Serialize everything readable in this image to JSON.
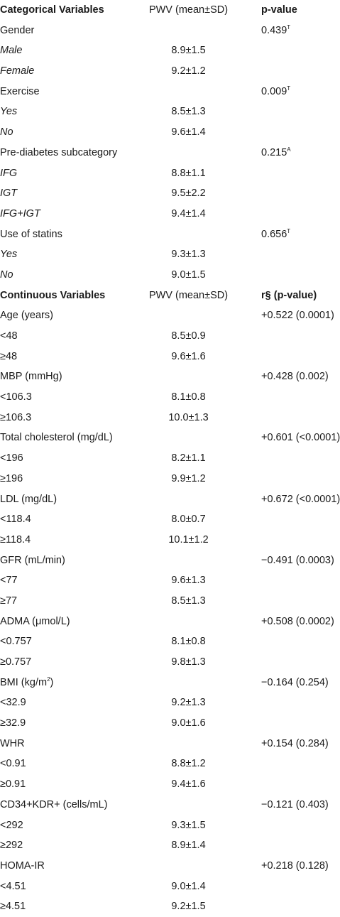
{
  "rows": [
    {
      "kind": "header",
      "c0": "Categorical Variables",
      "c1": "PWV (mean±SD)",
      "c2": "p-value"
    },
    {
      "kind": "group",
      "c0": "Gender",
      "c1": "",
      "c2": "0.439",
      "sup": "T"
    },
    {
      "kind": "sub",
      "c0": "Male",
      "c1": "8.9±1.5",
      "c2": ""
    },
    {
      "kind": "sub",
      "c0": "Female",
      "c1": "9.2±1.2",
      "c2": ""
    },
    {
      "kind": "group",
      "c0": "Exercise",
      "c1": "",
      "c2": "0.009",
      "sup": "T"
    },
    {
      "kind": "sub",
      "c0": "Yes",
      "c1": "8.5±1.3",
      "c2": ""
    },
    {
      "kind": "sub",
      "c0": "No",
      "c1": "9.6±1.4",
      "c2": ""
    },
    {
      "kind": "group",
      "c0": "Pre-diabetes subcategory",
      "c1": "",
      "c2": "0.215",
      "sup": "A"
    },
    {
      "kind": "sub",
      "c0": "IFG",
      "c1": "8.8±1.1",
      "c2": ""
    },
    {
      "kind": "sub",
      "c0": "IGT",
      "c1": "9.5±2.2",
      "c2": ""
    },
    {
      "kind": "sub",
      "c0": "IFG+IGT",
      "c1": "9.4±1.4",
      "c2": ""
    },
    {
      "kind": "group",
      "c0": "Use of statins",
      "c1": "",
      "c2": "0.656",
      "sup": "T"
    },
    {
      "kind": "sub",
      "c0": "Yes",
      "c1": "9.3±1.3",
      "c2": ""
    },
    {
      "kind": "sub",
      "c0": "No",
      "c1": "9.0±1.5",
      "c2": ""
    },
    {
      "kind": "header",
      "c0": "Continuous Variables",
      "c1": "PWV (mean±SD)",
      "c2": "r§ (p-value)"
    },
    {
      "kind": "group",
      "c0": "Age (years)",
      "c1": "",
      "c2": "+0.522 (0.0001)"
    },
    {
      "kind": "plain",
      "c0": "<48",
      "c1": "8.5±0.9",
      "c2": ""
    },
    {
      "kind": "plain",
      "c0": "≥48",
      "c1": "9.6±1.6",
      "c2": ""
    },
    {
      "kind": "group",
      "c0": "MBP (mmHg)",
      "c1": "",
      "c2": "+0.428 (0.002)"
    },
    {
      "kind": "plain",
      "c0": "<106.3",
      "c1": "8.1±0.8",
      "c2": ""
    },
    {
      "kind": "plain",
      "c0": "≥106.3",
      "c1": "10.0±1.3",
      "c2": ""
    },
    {
      "kind": "group",
      "c0": "Total cholesterol (mg/dL)",
      "c1": "",
      "c2": "+0.601 (<0.0001)"
    },
    {
      "kind": "plain",
      "c0": "<196",
      "c1": "8.2±1.1",
      "c2": ""
    },
    {
      "kind": "plain",
      "c0": "≥196",
      "c1": "9.9±1.2",
      "c2": ""
    },
    {
      "kind": "group",
      "c0": "LDL (mg/dL)",
      "c1": "",
      "c2": "+0.672 (<0.0001)"
    },
    {
      "kind": "plain",
      "c0": "<118.4",
      "c1": "8.0±0.7",
      "c2": ""
    },
    {
      "kind": "plain",
      "c0": "≥118.4",
      "c1": "10.1±1.2",
      "c2": ""
    },
    {
      "kind": "group",
      "c0": "GFR (mL/min)",
      "c1": "",
      "c2": "−0.491 (0.0003)"
    },
    {
      "kind": "plain",
      "c0": "<77",
      "c1": "9.6±1.3",
      "c2": ""
    },
    {
      "kind": "plain",
      "c0": "≥77",
      "c1": "8.5±1.3",
      "c2": ""
    },
    {
      "kind": "group",
      "c0": "ADMA (μmol/L)",
      "c1": "",
      "c2": "+0.508 (0.0002)"
    },
    {
      "kind": "plain",
      "c0": "<0.757",
      "c1": "8.1±0.8",
      "c2": ""
    },
    {
      "kind": "plain",
      "c0": "≥0.757",
      "c1": "9.8±1.3",
      "c2": ""
    },
    {
      "kind": "group",
      "c0": "BMI (kg/m",
      "c0sup": "2",
      "c0tail": ")",
      "c1": "",
      "c2": "−0.164 (0.254)"
    },
    {
      "kind": "plain",
      "c0": "<32.9",
      "c1": "9.2±1.3",
      "c2": ""
    },
    {
      "kind": "plain",
      "c0": "≥32.9",
      "c1": "9.0±1.6",
      "c2": ""
    },
    {
      "kind": "group",
      "c0": "WHR",
      "c1": "",
      "c2": "+0.154 (0.284)"
    },
    {
      "kind": "plain",
      "c0": "<0.91",
      "c1": "8.8±1.2",
      "c2": ""
    },
    {
      "kind": "plain",
      "c0": "≥0.91",
      "c1": "9.4±1.6",
      "c2": ""
    },
    {
      "kind": "group",
      "c0": "CD34+KDR+ (cells/mL)",
      "c1": "",
      "c2": "−0.121 (0.403)"
    },
    {
      "kind": "plain",
      "c0": "<292",
      "c1": "9.3±1.5",
      "c2": ""
    },
    {
      "kind": "plain",
      "c0": "≥292",
      "c1": "8.9±1.4",
      "c2": ""
    },
    {
      "kind": "group",
      "c0": "HOMA-IR",
      "c1": "",
      "c2": "+0.218 (0.128)"
    },
    {
      "kind": "plain",
      "c0": "<4.51",
      "c1": "9.0±1.4",
      "c2": ""
    },
    {
      "kind": "plain",
      "c0": "≥4.51",
      "c1": "9.2±1.5",
      "c2": ""
    }
  ]
}
